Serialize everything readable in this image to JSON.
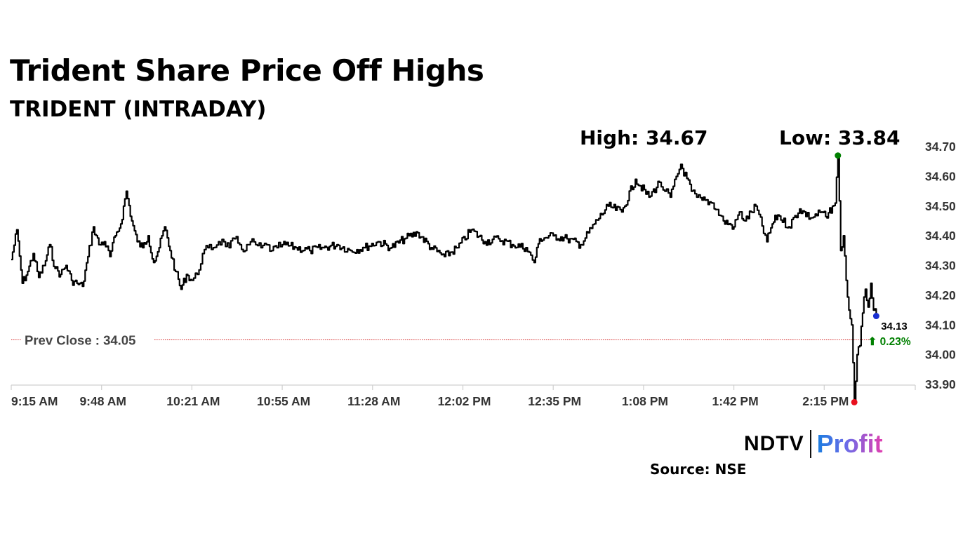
{
  "title": "Trident Share Price Off Highs",
  "subtitle": "TRIDENT (INTRADAY)",
  "high_label": "High: 34.67",
  "low_label": "Low: 33.84",
  "prev_close_label": "Prev Close : 34.05",
  "last_price_label": "34.13",
  "change_label": "⬆ 0.23%",
  "source_label": "Source: NSE",
  "logo": {
    "ndtv": "NDTV",
    "profit": "Profit"
  },
  "colors": {
    "line": "#000000",
    "prev_close": "#cc0000",
    "high_marker": "#008000",
    "low_marker": "#e8101e",
    "last_marker": "#1a2fd0",
    "change_text": "#008000"
  },
  "chart_data": {
    "type": "line",
    "title": "Trident Share Price Off Highs",
    "subtitle": "TRIDENT (INTRADAY)",
    "xlabel": "",
    "ylabel": "",
    "x_ticks": [
      "9:15 AM",
      "9:48 AM",
      "10:21 AM",
      "10:55 AM",
      "11:28 AM",
      "12:02 PM",
      "12:35 PM",
      "1:08 PM",
      "1:42 PM",
      "2:15 PM"
    ],
    "y_ticks": [
      "34.70",
      "34.60",
      "34.50",
      "34.40",
      "34.30",
      "34.20",
      "34.10",
      "34.00",
      "33.90"
    ],
    "ylim": [
      33.9,
      34.7
    ],
    "grid": false,
    "prev_close": 34.05,
    "high": 34.67,
    "low": 33.84,
    "last": 34.13,
    "change_pct": 0.23,
    "series": [
      {
        "x": [
          "9:15",
          "9:17",
          "9:19",
          "9:21",
          "9:23",
          "9:25",
          "9:27",
          "9:29",
          "9:31",
          "9:33",
          "9:35",
          "9:37",
          "9:39",
          "9:41",
          "9:43",
          "9:45",
          "9:47",
          "9:49",
          "9:51",
          "9:53",
          "9:55",
          "9:57",
          "9:59",
          "10:01",
          "10:03",
          "10:05",
          "10:07",
          "10:09",
          "10:11",
          "10:13",
          "10:15",
          "10:17",
          "10:19",
          "10:21",
          "10:23",
          "10:25",
          "10:27",
          "10:29",
          "10:31",
          "10:33",
          "10:35",
          "10:37",
          "10:39",
          "10:41",
          "10:43",
          "10:45",
          "10:47",
          "10:49",
          "10:51",
          "10:53",
          "10:55",
          "11:00",
          "11:05",
          "11:10",
          "11:15",
          "11:20",
          "11:25",
          "11:30",
          "11:35",
          "11:40",
          "11:45",
          "11:50",
          "11:55",
          "12:00",
          "12:05",
          "12:10",
          "12:15",
          "12:20",
          "12:25",
          "12:28",
          "12:30",
          "12:35",
          "12:40",
          "12:45",
          "12:50",
          "12:55",
          "13:00",
          "13:05",
          "13:10",
          "13:14",
          "13:16",
          "13:18",
          "13:22",
          "13:26",
          "13:28",
          "13:30",
          "13:34",
          "13:38",
          "13:42",
          "13:44",
          "13:46",
          "13:50",
          "13:54",
          "13:56",
          "13:58",
          "14:02",
          "14:06",
          "14:10",
          "14:14",
          "14:16",
          "14:18",
          "14:19",
          "14:20",
          "14:21",
          "14:22",
          "14:23",
          "14:24",
          "14:25",
          "14:26",
          "14:27",
          "14:28",
          "14:29",
          "14:30",
          "14:31",
          "14:32",
          "14:33",
          "14:34"
        ],
        "y": [
          34.32,
          34.42,
          34.24,
          34.28,
          34.34,
          34.26,
          34.3,
          34.37,
          34.29,
          34.27,
          34.3,
          34.25,
          34.24,
          34.23,
          34.33,
          34.43,
          34.37,
          34.38,
          34.33,
          34.4,
          34.44,
          34.55,
          34.45,
          34.38,
          34.36,
          34.4,
          34.31,
          34.36,
          34.43,
          34.35,
          34.28,
          34.22,
          34.27,
          34.25,
          34.27,
          34.34,
          34.36,
          34.36,
          34.38,
          34.38,
          34.36,
          34.39,
          34.37,
          34.35,
          34.38,
          34.37,
          34.36,
          34.37,
          34.35,
          34.36,
          34.37,
          34.36,
          34.35,
          34.36,
          34.37,
          34.35,
          34.36,
          34.38,
          34.36,
          34.39,
          34.41,
          34.36,
          34.33,
          34.36,
          34.42,
          34.38,
          34.39,
          34.37,
          34.36,
          34.31,
          34.39,
          34.4,
          34.39,
          34.37,
          34.44,
          34.5,
          34.48,
          34.59,
          34.53,
          34.58,
          34.55,
          34.53,
          34.64,
          34.55,
          34.53,
          34.52,
          34.51,
          34.45,
          34.43,
          34.48,
          34.45,
          34.5,
          34.38,
          34.44,
          34.47,
          34.43,
          34.49,
          34.46,
          34.48,
          34.46,
          34.5,
          34.51,
          34.67,
          34.35,
          34.4,
          34.25,
          34.15,
          34.1,
          33.84,
          34.0,
          34.03,
          34.14,
          34.22,
          34.16,
          34.24,
          34.15,
          34.13
        ]
      }
    ]
  }
}
